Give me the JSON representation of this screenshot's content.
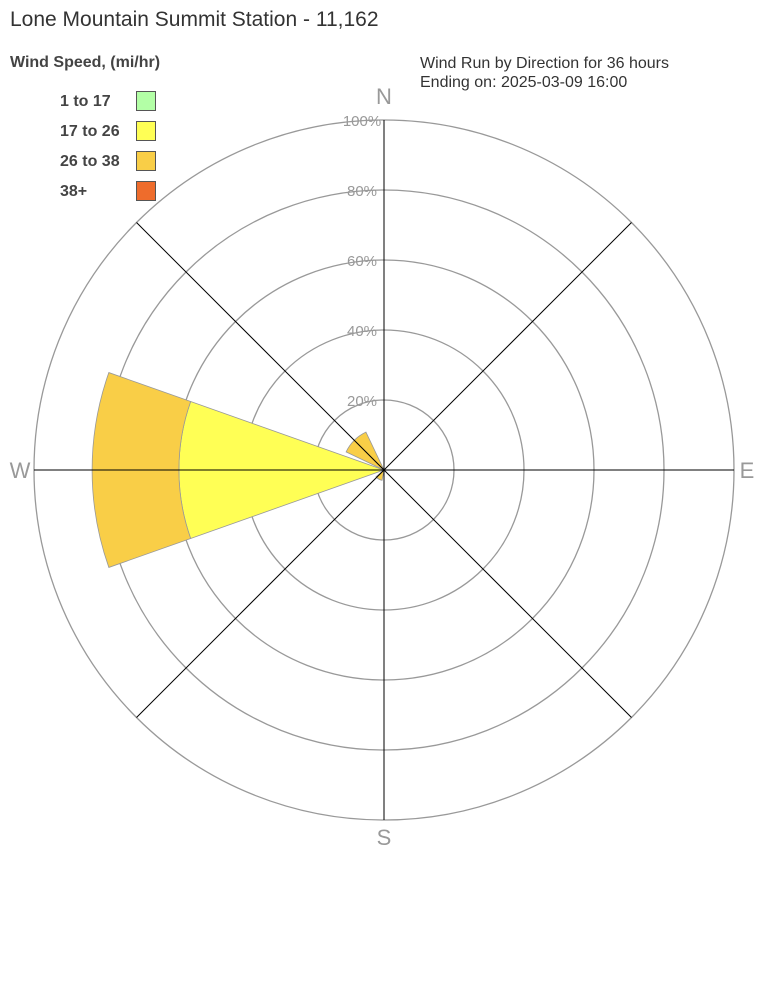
{
  "title": "Lone Mountain Summit Station - 11,162",
  "subtitle_line1": "Wind Run by Direction for 36 hours",
  "subtitle_line2": "Ending on: 2025-03-09 16:00",
  "chart_data": {
    "type": "wind-rose",
    "legend_title": "Wind Speed, (mi/hr)",
    "legend_placement": "top-left",
    "bins": [
      {
        "label": "1 to 17",
        "color": "#b3ffa6"
      },
      {
        "label": "17 to 26",
        "color": "#ffff55"
      },
      {
        "label": "26 to 38",
        "color": "#f9ce47"
      },
      {
        "label": "38+",
        "color": "#ee6c2c"
      }
    ],
    "radial_ticks": [
      "20%",
      "40%",
      "60%",
      "80%",
      "100%"
    ],
    "radial_max": 100,
    "directions": [
      "N",
      "E",
      "S",
      "W"
    ],
    "sectors": [
      {
        "direction": 270,
        "values": [
          0,
          58.6,
          24.8,
          0
        ]
      },
      {
        "direction": 315,
        "values": [
          0,
          0,
          12,
          0
        ]
      },
      {
        "direction": 210,
        "values": [
          0,
          0,
          3,
          0
        ]
      }
    ]
  }
}
